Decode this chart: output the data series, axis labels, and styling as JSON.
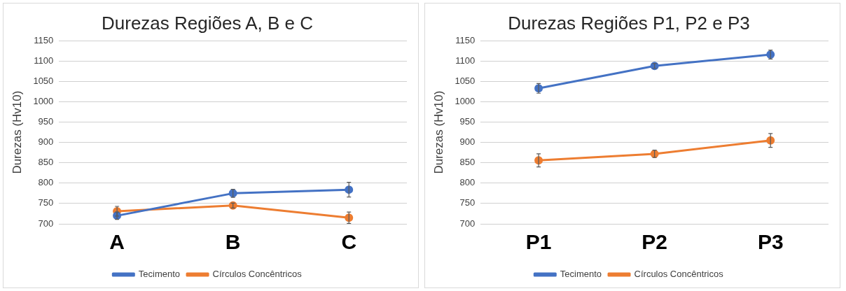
{
  "chart_data": [
    {
      "type": "line",
      "title": "Durezas Regiões A, B e C",
      "ylabel": "Durezas (Hv10)",
      "categories": [
        "A",
        "B",
        "C"
      ],
      "series": [
        {
          "name": "Tecimento",
          "color": "#4472c4",
          "values": [
            720,
            775,
            784
          ],
          "errors": [
            9,
            10,
            18
          ]
        },
        {
          "name": "Círculos Concêntricos",
          "color": "#ed7d31",
          "values": [
            731,
            745,
            715
          ],
          "errors": [
            12,
            6,
            14
          ]
        }
      ],
      "ylim": [
        700,
        1150
      ],
      "yticks": [
        700,
        750,
        800,
        850,
        900,
        950,
        1000,
        1050,
        1100,
        1150
      ],
      "grid": "y",
      "legend": "bottom",
      "marker": "circle",
      "line_style": "solid"
    },
    {
      "type": "line",
      "title": "Durezas Regiões P1, P2 e P3",
      "ylabel": "Durezas (Hv10)",
      "categories": [
        "P1",
        "P2",
        "P3"
      ],
      "series": [
        {
          "name": "Tecimento",
          "color": "#4472c4",
          "values": [
            1033,
            1088,
            1116
          ],
          "errors": [
            12,
            6,
            11
          ]
        },
        {
          "name": "Círculos Concêntricos",
          "color": "#ed7d31",
          "values": [
            856,
            872,
            905
          ],
          "errors": [
            16,
            9,
            17
          ]
        }
      ],
      "ylim": [
        700,
        1150
      ],
      "yticks": [
        700,
        750,
        800,
        850,
        900,
        950,
        1000,
        1050,
        1100,
        1150
      ],
      "grid": "y",
      "legend": "bottom",
      "marker": "circle",
      "line_style": "solid"
    }
  ]
}
